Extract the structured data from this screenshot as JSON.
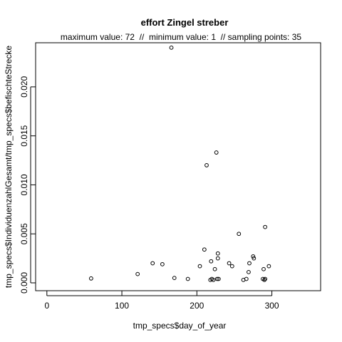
{
  "chart_data": {
    "type": "scatter",
    "title": "effort Zingel streber",
    "subtitle": "maximum value: 72  //  minimum value: 1  // sampling points: 35",
    "xlabel": "tmp_specs$day_of_year",
    "ylabel": "tmp_specs$IndividuenzahlGesamt/tmp_specs$befischteStrecke",
    "xlim": [
      -15,
      365
    ],
    "ylim": [
      -0.0008,
      0.0245
    ],
    "x_ticks": [
      0,
      100,
      200,
      300
    ],
    "x_tick_labels": [
      "0",
      "100",
      "200",
      "300"
    ],
    "y_ticks": [
      0.0,
      0.005,
      0.01,
      0.015,
      0.02
    ],
    "y_tick_labels": [
      "0.000",
      "0.005",
      "0.010",
      "0.015",
      "0.020"
    ],
    "grid": false,
    "points": [
      {
        "x": 59,
        "y": 0.00045
      },
      {
        "x": 121,
        "y": 0.0009
      },
      {
        "x": 141,
        "y": 0.002
      },
      {
        "x": 154,
        "y": 0.0019
      },
      {
        "x": 166,
        "y": 0.024
      },
      {
        "x": 170,
        "y": 0.0005
      },
      {
        "x": 188,
        "y": 0.0004
      },
      {
        "x": 204,
        "y": 0.0017
      },
      {
        "x": 210,
        "y": 0.0034
      },
      {
        "x": 213,
        "y": 0.012
      },
      {
        "x": 218,
        "y": 0.0003
      },
      {
        "x": 219,
        "y": 0.0022
      },
      {
        "x": 220,
        "y": 0.0004
      },
      {
        "x": 222,
        "y": 0.0003
      },
      {
        "x": 224,
        "y": 0.0014
      },
      {
        "x": 226,
        "y": 0.0133
      },
      {
        "x": 227,
        "y": 0.0004
      },
      {
        "x": 228,
        "y": 0.0025
      },
      {
        "x": 228,
        "y": 0.003
      },
      {
        "x": 229,
        "y": 0.0004
      },
      {
        "x": 243,
        "y": 0.002
      },
      {
        "x": 247,
        "y": 0.0017
      },
      {
        "x": 256,
        "y": 0.005
      },
      {
        "x": 262,
        "y": 0.0003
      },
      {
        "x": 266,
        "y": 0.0004
      },
      {
        "x": 269,
        "y": 0.0011
      },
      {
        "x": 270,
        "y": 0.002
      },
      {
        "x": 275,
        "y": 0.0027
      },
      {
        "x": 276,
        "y": 0.0025
      },
      {
        "x": 288,
        "y": 0.0004
      },
      {
        "x": 289,
        "y": 0.0014
      },
      {
        "x": 290,
        "y": 0.0003
      },
      {
        "x": 291,
        "y": 0.0004
      },
      {
        "x": 291,
        "y": 0.0057
      },
      {
        "x": 296,
        "y": 0.0017
      }
    ]
  }
}
